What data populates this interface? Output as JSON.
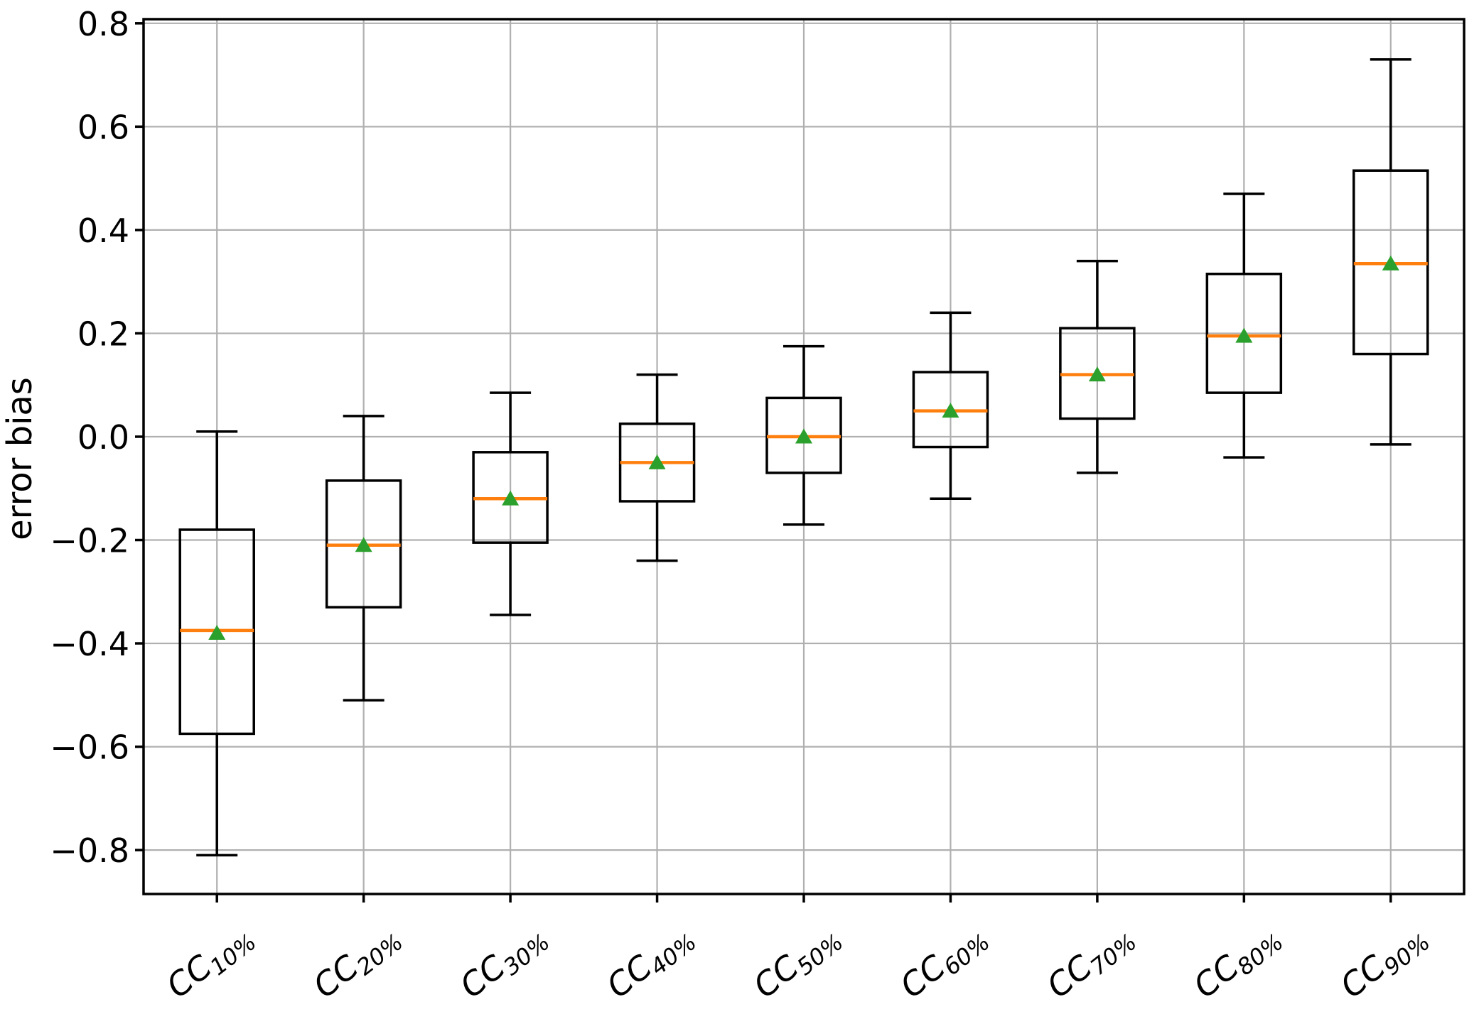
{
  "figure": {
    "background": "#ffffff"
  },
  "chart_data": {
    "type": "box",
    "title": "",
    "xlabel": "",
    "ylabel": "error bias",
    "grid": true,
    "legend": "none",
    "ylim": [
      -0.885,
      0.808
    ],
    "yticks": [
      0.8,
      0.6,
      0.4,
      0.2,
      0.0,
      -0.2,
      -0.4,
      -0.6,
      -0.8
    ],
    "categories": [
      "CC_10%",
      "CC_20%",
      "CC_30%",
      "CC_40%",
      "CC_50%",
      "CC_60%",
      "CC_70%",
      "CC_80%",
      "CC_90%"
    ],
    "boxes": [
      {
        "label_base": "CC",
        "label_sub": "10%",
        "whisker_low": -0.81,
        "q1": -0.575,
        "median": -0.375,
        "q3": -0.18,
        "whisker_high": 0.01,
        "mean": -0.38
      },
      {
        "label_base": "CC",
        "label_sub": "20%",
        "whisker_low": -0.51,
        "q1": -0.33,
        "median": -0.21,
        "q3": -0.085,
        "whisker_high": 0.04,
        "mean": -0.21
      },
      {
        "label_base": "CC",
        "label_sub": "30%",
        "whisker_low": -0.345,
        "q1": -0.205,
        "median": -0.12,
        "q3": -0.03,
        "whisker_high": 0.085,
        "mean": -0.12
      },
      {
        "label_base": "CC",
        "label_sub": "40%",
        "whisker_low": -0.24,
        "q1": -0.125,
        "median": -0.05,
        "q3": 0.025,
        "whisker_high": 0.12,
        "mean": -0.05
      },
      {
        "label_base": "CC",
        "label_sub": "50%",
        "whisker_low": -0.17,
        "q1": -0.07,
        "median": 0.0,
        "q3": 0.075,
        "whisker_high": 0.175,
        "mean": 0.0
      },
      {
        "label_base": "CC",
        "label_sub": "60%",
        "whisker_low": -0.12,
        "q1": -0.02,
        "median": 0.05,
        "q3": 0.125,
        "whisker_high": 0.24,
        "mean": 0.05
      },
      {
        "label_base": "CC",
        "label_sub": "70%",
        "whisker_low": -0.07,
        "q1": 0.035,
        "median": 0.12,
        "q3": 0.21,
        "whisker_high": 0.34,
        "mean": 0.12
      },
      {
        "label_base": "CC",
        "label_sub": "80%",
        "whisker_low": -0.04,
        "q1": 0.085,
        "median": 0.195,
        "q3": 0.315,
        "whisker_high": 0.47,
        "mean": 0.195
      },
      {
        "label_base": "CC",
        "label_sub": "90%",
        "whisker_low": -0.015,
        "q1": 0.16,
        "median": 0.335,
        "q3": 0.515,
        "whisker_high": 0.73,
        "mean": 0.335
      }
    ],
    "colors": {
      "line": "#000000",
      "median": "#ff7f0e",
      "mean_marker": "#2ca02c",
      "grid": "#b0b0b0",
      "background": "#ffffff"
    }
  }
}
